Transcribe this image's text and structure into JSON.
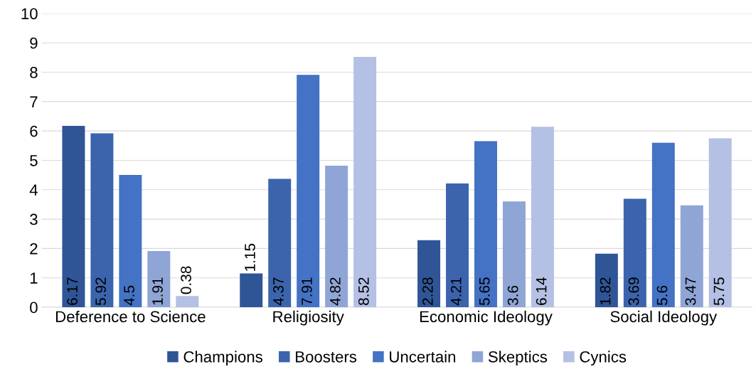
{
  "chart_data": {
    "type": "bar",
    "categories": [
      "Deference to Science",
      "Religiosity",
      "Economic Ideology",
      "Social Ideology"
    ],
    "series": [
      {
        "name": "Champions",
        "color": "#2f5597",
        "values": [
          6.17,
          1.15,
          2.28,
          1.82
        ]
      },
      {
        "name": "Boosters",
        "color": "#3b64ad",
        "values": [
          5.92,
          4.37,
          4.21,
          3.69
        ]
      },
      {
        "name": "Uncertain",
        "color": "#4472c4",
        "values": [
          4.5,
          7.91,
          5.65,
          5.6
        ]
      },
      {
        "name": "Skeptics",
        "color": "#8fa5d6",
        "values": [
          1.91,
          4.82,
          3.6,
          3.47
        ]
      },
      {
        "name": "Cynics",
        "color": "#b4c0e4",
        "values": [
          0.38,
          8.52,
          6.14,
          5.75
        ]
      }
    ],
    "ylim": [
      0,
      10
    ],
    "yticks": [
      0,
      1,
      2,
      3,
      4,
      5,
      6,
      7,
      8,
      9,
      10
    ],
    "grid": "y",
    "legend": "bottom",
    "data_labels": true
  }
}
